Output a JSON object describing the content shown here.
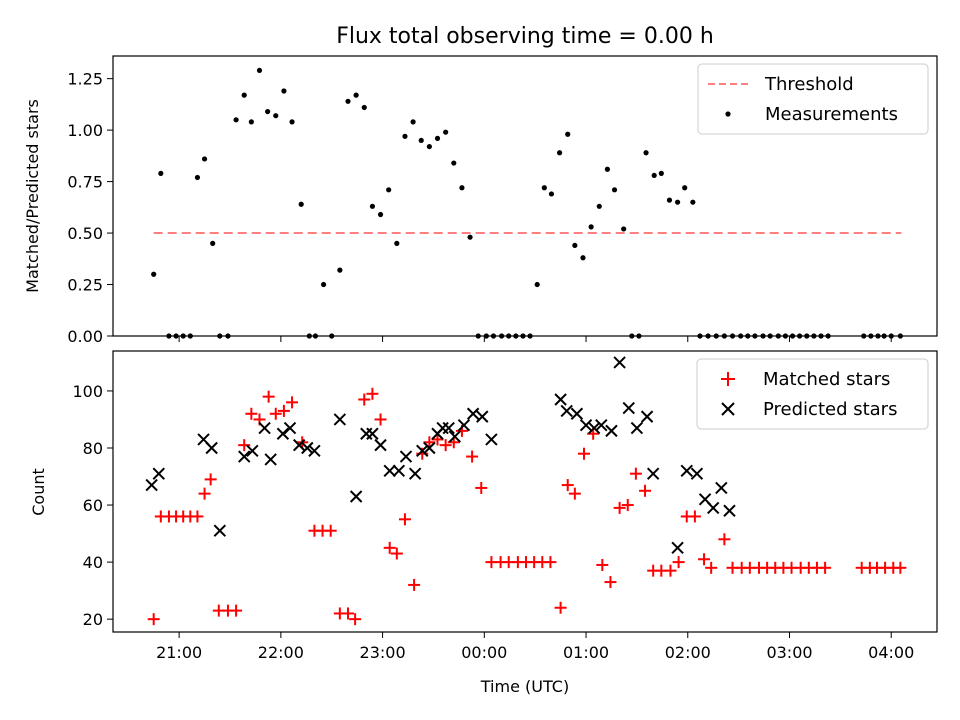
{
  "figure": {
    "title": "Flux total observing time = 0.00 h",
    "xlabel": "Time (UTC)"
  },
  "chart_data": [
    {
      "type": "scatter",
      "panel": "top",
      "ylabel": "Matched/Predicted stars",
      "xlim_hours": [
        20.35,
        28.45
      ],
      "ylim": [
        0,
        1.36
      ],
      "yticks": [
        0.0,
        0.25,
        0.5,
        0.75,
        1.0,
        1.25
      ],
      "ytick_labels": [
        "0.00",
        "0.25",
        "0.50",
        "0.75",
        "1.00",
        "1.25"
      ],
      "legend_position": "upper right",
      "threshold": {
        "name": "Threshold",
        "y": 0.5,
        "x_range": [
          20.75,
          28.1
        ],
        "color": "#ff7f7f",
        "style": "dashed"
      },
      "series": [
        {
          "name": "Measurements",
          "color": "#000000",
          "marker": "dot",
          "x": [
            20.75,
            20.82,
            20.9,
            20.97,
            21.04,
            21.11,
            21.18,
            21.25,
            21.33,
            21.4,
            21.48,
            21.56,
            21.64,
            21.71,
            21.79,
            21.87,
            21.95,
            22.03,
            22.11,
            22.2,
            22.28,
            22.34,
            22.42,
            22.5,
            22.58,
            22.66,
            22.74,
            22.82,
            22.9,
            22.98,
            23.06,
            23.14,
            23.22,
            23.3,
            23.38,
            23.46,
            23.54,
            23.62,
            23.7,
            23.78,
            23.86,
            23.94,
            24.02,
            24.09,
            24.17,
            24.24,
            24.31,
            24.38,
            24.45,
            24.52,
            24.59,
            24.66,
            24.74,
            24.82,
            24.89,
            24.97,
            25.05,
            25.13,
            25.21,
            25.28,
            25.37,
            25.45,
            25.52,
            25.59,
            25.67,
            25.74,
            25.82,
            25.9,
            25.97,
            26.05,
            26.12,
            26.2,
            26.28,
            26.36,
            26.44,
            26.52,
            26.59,
            26.66,
            26.74,
            26.81,
            26.89,
            26.96,
            27.03,
            27.1,
            27.17,
            27.24,
            27.31,
            27.38,
            27.73,
            27.8,
            27.87,
            27.93,
            28.0,
            28.09
          ],
          "y": [
            0.3,
            0.79,
            0.0,
            0.0,
            0.0,
            0.0,
            0.77,
            0.86,
            0.45,
            0.0,
            0.0,
            1.05,
            1.17,
            1.04,
            1.29,
            1.09,
            1.07,
            1.19,
            1.04,
            0.64,
            0.0,
            0.0,
            0.25,
            0.0,
            0.32,
            1.14,
            1.17,
            1.11,
            0.63,
            0.59,
            0.71,
            0.45,
            0.97,
            1.04,
            0.95,
            0.92,
            0.96,
            0.99,
            0.84,
            0.72,
            0.48,
            0.0,
            0.0,
            0.0,
            0.0,
            0.0,
            0.0,
            0.0,
            0.0,
            0.25,
            0.72,
            0.69,
            0.89,
            0.98,
            0.44,
            0.38,
            0.53,
            0.63,
            0.81,
            0.71,
            0.52,
            0.0,
            0.0,
            0.89,
            0.78,
            0.79,
            0.66,
            0.65,
            0.72,
            0.65,
            0.0,
            0.0,
            0.0,
            0.0,
            0.0,
            0.0,
            0.0,
            0.0,
            0.0,
            0.0,
            0.0,
            0.0,
            0.0,
            0.0,
            0.0,
            0.0,
            0.0,
            0.0,
            0.0,
            0.0,
            0.0,
            0.0,
            0.0,
            0.0
          ]
        }
      ]
    },
    {
      "type": "scatter",
      "panel": "bottom",
      "ylabel": "Count",
      "xlabel": "Time (UTC)",
      "xlim_hours": [
        20.35,
        28.45
      ],
      "ylim": [
        15.5,
        114
      ],
      "yticks": [
        20,
        40,
        60,
        80,
        100
      ],
      "ytick_labels": [
        "20",
        "40",
        "60",
        "80",
        "100"
      ],
      "xticks_hours": [
        21,
        22,
        23,
        24,
        25,
        26,
        27,
        28
      ],
      "xtick_labels": [
        "21:00",
        "22:00",
        "23:00",
        "00:00",
        "01:00",
        "02:00",
        "03:00",
        "04:00"
      ],
      "legend_position": "upper right",
      "series": [
        {
          "name": "Matched stars",
          "color": "#ff0000",
          "marker": "plus",
          "points": [
            [
              20.75,
              20
            ],
            [
              20.82,
              56
            ],
            [
              20.9,
              56
            ],
            [
              20.97,
              56
            ],
            [
              21.04,
              56
            ],
            [
              21.11,
              56
            ],
            [
              21.18,
              56
            ],
            [
              21.25,
              64
            ],
            [
              21.31,
              69
            ],
            [
              21.39,
              23
            ],
            [
              21.48,
              23
            ],
            [
              21.56,
              23
            ],
            [
              21.64,
              81
            ],
            [
              21.71,
              92
            ],
            [
              21.79,
              90
            ],
            [
              21.88,
              98
            ],
            [
              21.95,
              92
            ],
            [
              22.03,
              93
            ],
            [
              22.11,
              96
            ],
            [
              22.21,
              82
            ],
            [
              22.33,
              51
            ],
            [
              22.41,
              51
            ],
            [
              22.49,
              51
            ],
            [
              22.58,
              22
            ],
            [
              22.66,
              22
            ],
            [
              22.73,
              20
            ],
            [
              22.82,
              97
            ],
            [
              22.9,
              99
            ],
            [
              22.98,
              90
            ],
            [
              23.07,
              45
            ],
            [
              23.14,
              43
            ],
            [
              23.22,
              55
            ],
            [
              23.31,
              32
            ],
            [
              23.39,
              78
            ],
            [
              23.46,
              82
            ],
            [
              23.54,
              83
            ],
            [
              23.62,
              81
            ],
            [
              23.7,
              82
            ],
            [
              23.78,
              86
            ],
            [
              23.88,
              77
            ],
            [
              23.97,
              66
            ],
            [
              24.07,
              40
            ],
            [
              24.16,
              40
            ],
            [
              24.24,
              40
            ],
            [
              24.33,
              40
            ],
            [
              24.41,
              40
            ],
            [
              24.49,
              40
            ],
            [
              24.57,
              40
            ],
            [
              24.65,
              40
            ],
            [
              24.75,
              24
            ],
            [
              24.82,
              67
            ],
            [
              24.89,
              64
            ],
            [
              24.98,
              78
            ],
            [
              25.07,
              85
            ],
            [
              25.16,
              39
            ],
            [
              25.24,
              33
            ],
            [
              25.33,
              59
            ],
            [
              25.41,
              60
            ],
            [
              25.49,
              71
            ],
            [
              25.58,
              65
            ],
            [
              25.66,
              37
            ],
            [
              25.74,
              37
            ],
            [
              25.83,
              37
            ],
            [
              25.91,
              40
            ],
            [
              25.99,
              56
            ],
            [
              26.07,
              56
            ],
            [
              26.16,
              41
            ],
            [
              26.23,
              38
            ],
            [
              26.36,
              48
            ],
            [
              26.44,
              38
            ],
            [
              26.53,
              38
            ],
            [
              26.61,
              38
            ],
            [
              26.7,
              38
            ],
            [
              26.78,
              38
            ],
            [
              26.86,
              38
            ],
            [
              26.94,
              38
            ],
            [
              27.02,
              38
            ],
            [
              27.11,
              38
            ],
            [
              27.19,
              38
            ],
            [
              27.27,
              38
            ],
            [
              27.35,
              38
            ],
            [
              27.71,
              38
            ],
            [
              27.79,
              38
            ],
            [
              27.86,
              38
            ],
            [
              27.94,
              38
            ],
            [
              28.02,
              38
            ],
            [
              28.09,
              38
            ]
          ]
        },
        {
          "name": "Predicted stars",
          "color": "#000000",
          "marker": "x",
          "points": [
            [
              20.73,
              67
            ],
            [
              20.8,
              71
            ],
            [
              21.24,
              83
            ],
            [
              21.32,
              80
            ],
            [
              21.4,
              51
            ],
            [
              21.64,
              77
            ],
            [
              21.72,
              79
            ],
            [
              21.84,
              87
            ],
            [
              21.9,
              76
            ],
            [
              22.02,
              85
            ],
            [
              22.09,
              87
            ],
            [
              22.18,
              81
            ],
            [
              22.26,
              80
            ],
            [
              22.33,
              79
            ],
            [
              22.58,
              90
            ],
            [
              22.74,
              63
            ],
            [
              22.84,
              85
            ],
            [
              22.9,
              85
            ],
            [
              22.98,
              81
            ],
            [
              23.07,
              72
            ],
            [
              23.16,
              72
            ],
            [
              23.23,
              77
            ],
            [
              23.32,
              71
            ],
            [
              23.39,
              79
            ],
            [
              23.46,
              80
            ],
            [
              23.54,
              85
            ],
            [
              23.59,
              87
            ],
            [
              23.65,
              87
            ],
            [
              23.71,
              84
            ],
            [
              23.8,
              88
            ],
            [
              23.89,
              92
            ],
            [
              23.98,
              91
            ],
            [
              24.07,
              83
            ],
            [
              24.75,
              97
            ],
            [
              24.81,
              93
            ],
            [
              24.91,
              92
            ],
            [
              25.0,
              88
            ],
            [
              25.08,
              87
            ],
            [
              25.15,
              88
            ],
            [
              25.25,
              86
            ],
            [
              25.33,
              110
            ],
            [
              25.42,
              94
            ],
            [
              25.5,
              87
            ],
            [
              25.6,
              91
            ],
            [
              25.66,
              71
            ],
            [
              25.9,
              45
            ],
            [
              25.99,
              72
            ],
            [
              26.09,
              71
            ],
            [
              26.17,
              62
            ],
            [
              26.25,
              59
            ],
            [
              26.33,
              66
            ],
            [
              26.41,
              58
            ]
          ]
        }
      ]
    }
  ]
}
